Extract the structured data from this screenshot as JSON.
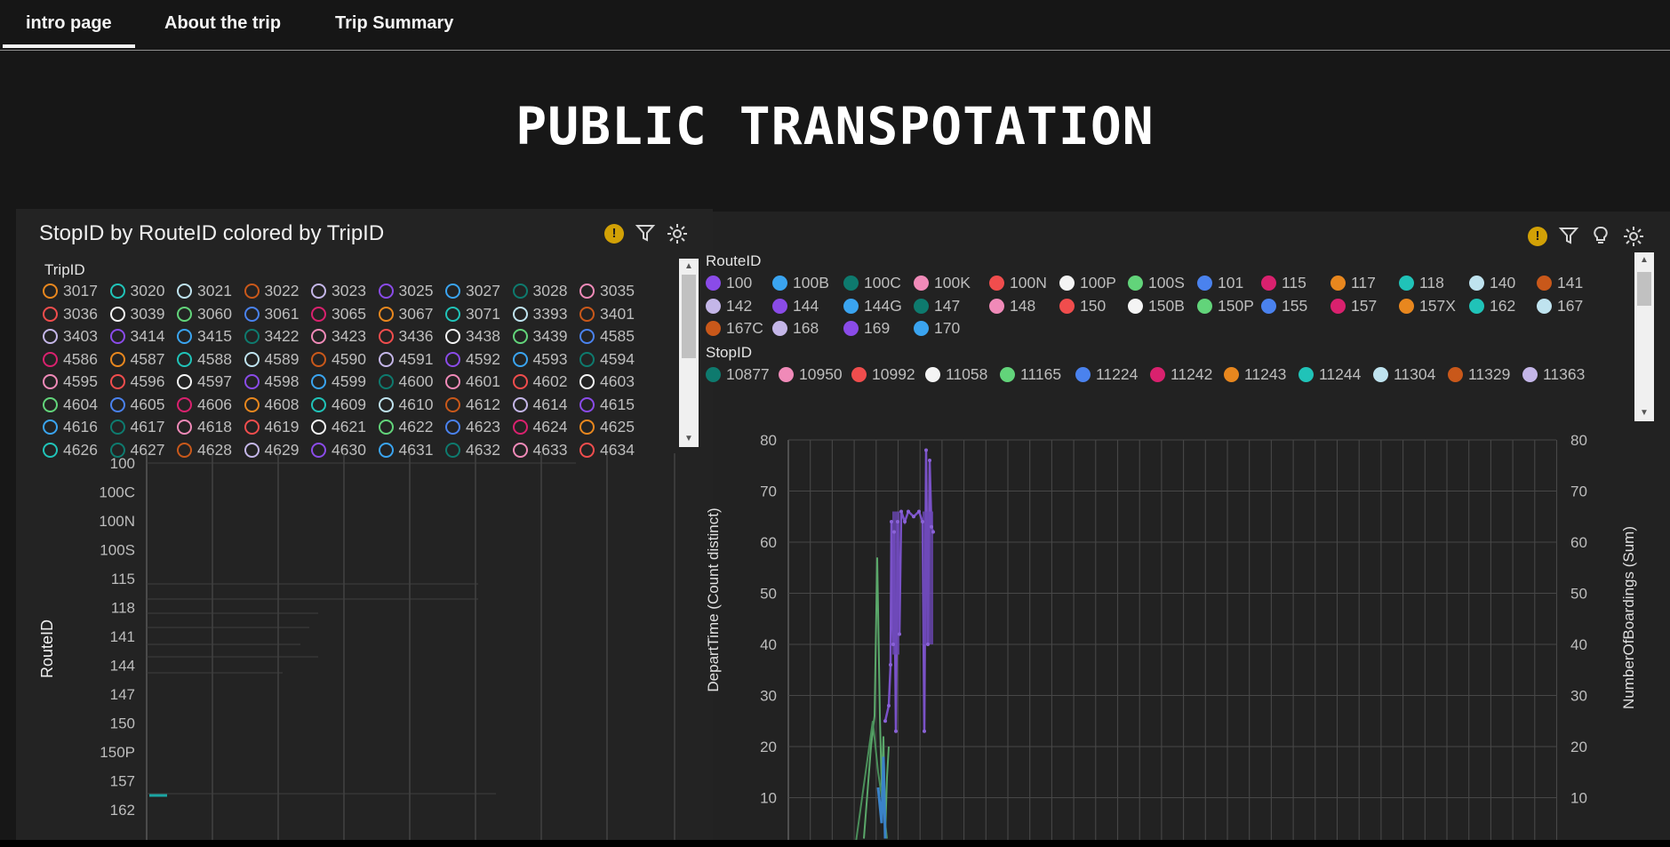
{
  "nav": {
    "tabs": [
      {
        "label": "intro page",
        "active": true
      },
      {
        "label": "About the trip",
        "active": false
      },
      {
        "label": "Trip Summary",
        "active": false
      }
    ]
  },
  "page_title": "PUBLIC TRANSPOTATION",
  "left_panel": {
    "title": "StopID by RouteID colored by TripID",
    "icons": [
      "warning-icon",
      "filter-icon",
      "settings-icon"
    ],
    "legend_title": "TripID",
    "legend_items": [
      {
        "label": "3017",
        "color": "#e8871e"
      },
      {
        "label": "3020",
        "color": "#20c3b8"
      },
      {
        "label": "3021",
        "color": "#bfe3ef"
      },
      {
        "label": "3022",
        "color": "#c9581a"
      },
      {
        "label": "3023",
        "color": "#c4b6e8"
      },
      {
        "label": "3025",
        "color": "#8a4be8"
      },
      {
        "label": "3027",
        "color": "#3aa4f0"
      },
      {
        "label": "3028",
        "color": "#0e7a6e"
      },
      {
        "label": "3035",
        "color": "#f08ab8"
      },
      {
        "label": "3036",
        "color": "#f04d4d"
      },
      {
        "label": "3039",
        "color": "#f4f4f4"
      },
      {
        "label": "3060",
        "color": "#62d47a"
      },
      {
        "label": "3061",
        "color": "#4a82ee"
      },
      {
        "label": "3065",
        "color": "#d9216e"
      },
      {
        "label": "3067",
        "color": "#e8871e"
      },
      {
        "label": "3071",
        "color": "#20c3b8"
      },
      {
        "label": "3393",
        "color": "#bfe3ef"
      },
      {
        "label": "3401",
        "color": "#c9581a"
      },
      {
        "label": "3403",
        "color": "#c4b6e8"
      },
      {
        "label": "3414",
        "color": "#8a4be8"
      },
      {
        "label": "3415",
        "color": "#3aa4f0"
      },
      {
        "label": "3422",
        "color": "#0e7a6e"
      },
      {
        "label": "3423",
        "color": "#f08ab8"
      },
      {
        "label": "3436",
        "color": "#f04d4d"
      },
      {
        "label": "3438",
        "color": "#f4f4f4"
      },
      {
        "label": "3439",
        "color": "#62d47a"
      },
      {
        "label": "4585",
        "color": "#4a82ee"
      },
      {
        "label": "4586",
        "color": "#d9216e"
      },
      {
        "label": "4587",
        "color": "#e8871e"
      },
      {
        "label": "4588",
        "color": "#20c3b8"
      },
      {
        "label": "4589",
        "color": "#bfe3ef"
      },
      {
        "label": "4590",
        "color": "#c9581a"
      },
      {
        "label": "4591",
        "color": "#c4b6e8"
      },
      {
        "label": "4592",
        "color": "#8a4be8"
      },
      {
        "label": "4593",
        "color": "#3aa4f0"
      },
      {
        "label": "4594",
        "color": "#0e7a6e"
      },
      {
        "label": "4595",
        "color": "#f08ab8"
      },
      {
        "label": "4596",
        "color": "#f04d4d"
      },
      {
        "label": "4597",
        "color": "#f4f4f4"
      },
      {
        "label": "4598",
        "color": "#8a4be8"
      },
      {
        "label": "4599",
        "color": "#3aa4f0"
      },
      {
        "label": "4600",
        "color": "#0e7a6e"
      },
      {
        "label": "4601",
        "color": "#f08ab8"
      },
      {
        "label": "4602",
        "color": "#f04d4d"
      },
      {
        "label": "4603",
        "color": "#f4f4f4"
      },
      {
        "label": "4604",
        "color": "#62d47a"
      },
      {
        "label": "4605",
        "color": "#4a82ee"
      },
      {
        "label": "4606",
        "color": "#d9216e"
      },
      {
        "label": "4608",
        "color": "#e8871e"
      },
      {
        "label": "4609",
        "color": "#20c3b8"
      },
      {
        "label": "4610",
        "color": "#bfe3ef"
      },
      {
        "label": "4612",
        "color": "#c9581a"
      },
      {
        "label": "4614",
        "color": "#c4b6e8"
      },
      {
        "label": "4615",
        "color": "#8a4be8"
      },
      {
        "label": "4616",
        "color": "#3aa4f0"
      },
      {
        "label": "4617",
        "color": "#0e7a6e"
      },
      {
        "label": "4618",
        "color": "#f08ab8"
      },
      {
        "label": "4619",
        "color": "#f04d4d"
      },
      {
        "label": "4621",
        "color": "#f4f4f4"
      },
      {
        "label": "4622",
        "color": "#62d47a"
      },
      {
        "label": "4623",
        "color": "#4a82ee"
      },
      {
        "label": "4624",
        "color": "#d9216e"
      },
      {
        "label": "4625",
        "color": "#e8871e"
      },
      {
        "label": "4626",
        "color": "#20c3b8"
      },
      {
        "label": "4627",
        "color": "#0e7a6e"
      },
      {
        "label": "4628",
        "color": "#c9581a"
      },
      {
        "label": "4629",
        "color": "#c4b6e8"
      },
      {
        "label": "4630",
        "color": "#8a4be8"
      },
      {
        "label": "4631",
        "color": "#3aa4f0"
      },
      {
        "label": "4632",
        "color": "#0e7a6e"
      },
      {
        "label": "4633",
        "color": "#f08ab8"
      },
      {
        "label": "4634",
        "color": "#f04d4d"
      }
    ],
    "chart": {
      "y_label": "RouteID",
      "categories": [
        "100",
        "100C",
        "100N",
        "100S",
        "115",
        "118",
        "141",
        "144",
        "147",
        "150",
        "150P",
        "157",
        "162"
      ]
    }
  },
  "right_panel": {
    "icons": [
      "warning-icon",
      "filter-icon",
      "lightbulb-icon",
      "settings-icon"
    ],
    "legend_route_title": "RouteID",
    "legend_route_items": [
      {
        "label": "100",
        "color": "#8a4be8"
      },
      {
        "label": "100B",
        "color": "#3aa4f0"
      },
      {
        "label": "100C",
        "color": "#0e7a6e"
      },
      {
        "label": "100K",
        "color": "#f08ab8"
      },
      {
        "label": "100N",
        "color": "#f04d4d"
      },
      {
        "label": "100P",
        "color": "#f4f4f4"
      },
      {
        "label": "100S",
        "color": "#62d47a"
      },
      {
        "label": "101",
        "color": "#4a82ee"
      },
      {
        "label": "115",
        "color": "#d9216e"
      },
      {
        "label": "117",
        "color": "#e8871e"
      },
      {
        "label": "118",
        "color": "#20c3b8"
      },
      {
        "label": "140",
        "color": "#bfe3ef"
      },
      {
        "label": "141",
        "color": "#c9581a"
      },
      {
        "label": "142",
        "color": "#c4b6e8"
      },
      {
        "label": "144",
        "color": "#8a4be8"
      },
      {
        "label": "144G",
        "color": "#3aa4f0"
      },
      {
        "label": "147",
        "color": "#0e7a6e"
      },
      {
        "label": "148",
        "color": "#f08ab8"
      },
      {
        "label": "150",
        "color": "#f04d4d"
      },
      {
        "label": "150B",
        "color": "#f4f4f4"
      },
      {
        "label": "150P",
        "color": "#62d47a"
      },
      {
        "label": "155",
        "color": "#4a82ee"
      },
      {
        "label": "157",
        "color": "#d9216e"
      },
      {
        "label": "157X",
        "color": "#e8871e"
      },
      {
        "label": "162",
        "color": "#20c3b8"
      },
      {
        "label": "167",
        "color": "#bfe3ef"
      },
      {
        "label": "167C",
        "color": "#c9581a"
      },
      {
        "label": "168",
        "color": "#c4b6e8"
      },
      {
        "label": "169",
        "color": "#8a4be8"
      },
      {
        "label": "170",
        "color": "#3aa4f0"
      }
    ],
    "legend_stop_title": "StopID",
    "legend_stop_items": [
      {
        "label": "10877",
        "color": "#0e7a6e"
      },
      {
        "label": "10950",
        "color": "#f08ab8"
      },
      {
        "label": "10992",
        "color": "#f04d4d"
      },
      {
        "label": "11058",
        "color": "#f4f4f4"
      },
      {
        "label": "11165",
        "color": "#62d47a"
      },
      {
        "label": "11224",
        "color": "#4a82ee"
      },
      {
        "label": "11242",
        "color": "#d9216e"
      },
      {
        "label": "11243",
        "color": "#e8871e"
      },
      {
        "label": "11244",
        "color": "#20c3b8"
      },
      {
        "label": "11304",
        "color": "#bfe3ef"
      },
      {
        "label": "11329",
        "color": "#c9581a"
      },
      {
        "label": "11363",
        "color": "#c4b6e8"
      }
    ],
    "chart": {
      "y_left_label": "DepartTime (Count distinct)",
      "y_right_label": "NumberOfBoardings (Sum)",
      "y_ticks": [
        10,
        20,
        30,
        40,
        50,
        60,
        70,
        80
      ],
      "ylim": [
        0,
        80
      ]
    }
  }
}
